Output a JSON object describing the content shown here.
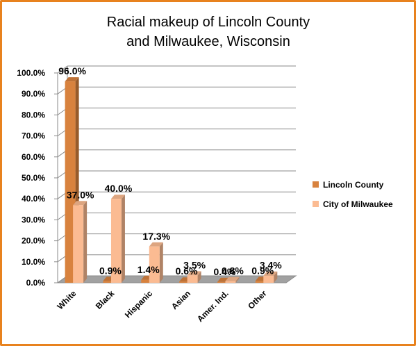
{
  "chart_data": {
    "type": "bar",
    "title_lines": [
      "Racial makeup of Lincoln County",
      "and Milwaukee, Wisconsin"
    ],
    "categories": [
      "White",
      "Black",
      "Hispanic",
      "Asian",
      "Amer. Ind.",
      "Other"
    ],
    "series": [
      {
        "name": "Lincoln County",
        "values": [
          96.0,
          0.9,
          1.4,
          0.6,
          0.4,
          0.9
        ],
        "labels": [
          "96.0%",
          "0.9%",
          "1.4%",
          "0.6%",
          "0.4%",
          "0.9%"
        ],
        "color": "#d8823e"
      },
      {
        "name": "City of Milwaukee",
        "values": [
          37.0,
          40.0,
          17.3,
          3.5,
          0.8,
          3.4
        ],
        "labels": [
          "37.0%",
          "40.0%",
          "17.3%",
          "3.5%",
          "0.8%",
          "3.4%"
        ],
        "color": "#fbbb92"
      }
    ],
    "y_ticks": [
      "0.0%",
      "10.0%",
      "20.0%",
      "30.0%",
      "40.0%",
      "50.0%",
      "60.0%",
      "70.0%",
      "80.0%",
      "90.0%",
      "100.0%"
    ],
    "ylim": [
      0,
      100
    ],
    "grid": true,
    "legend_position": "right",
    "border_color": "#e8821e"
  }
}
